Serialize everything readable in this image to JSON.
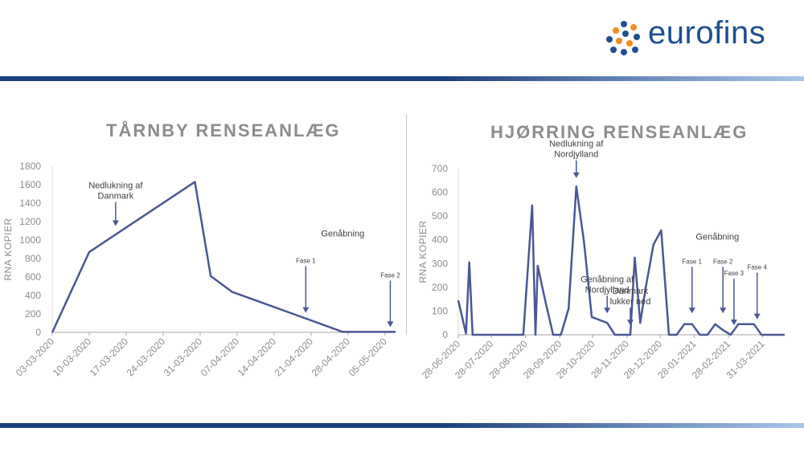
{
  "logo": {
    "text": "eurofins"
  },
  "colors": {
    "line": "#4a5794",
    "axis_text": "#8c8c8c",
    "brand": "#1d4f91",
    "band": "#1b3f7f"
  },
  "chart_data": [
    {
      "type": "line",
      "title": "TÅRNBY RENSEANLÆG",
      "ylabel": "RNA KOPIER",
      "ylim": [
        0,
        1800
      ],
      "yticks": [
        0,
        200,
        400,
        600,
        800,
        1000,
        1200,
        1400,
        1600,
        1800
      ],
      "xlim": [
        "2020-03-03",
        "2020-05-07"
      ],
      "xticks": [
        "03-03-2020",
        "10-03-2020",
        "17-03-2020",
        "24-03-2020",
        "31-03-2020",
        "07-04-2020",
        "14-04-2020",
        "21-04-2020",
        "28-04-2020",
        "05-05-2020"
      ],
      "x": [
        "2020-03-03",
        "2020-03-10",
        "2020-03-30",
        "2020-04-02",
        "2020-04-06",
        "2020-04-27",
        "2020-05-07"
      ],
      "y": [
        0,
        870,
        1630,
        610,
        440,
        5,
        5
      ],
      "annotations": [
        {
          "id": "nedlukning",
          "text": "Nedlukning af Danmark",
          "lines": [
            "Nedlukning af",
            "Danmark"
          ],
          "x": "2020-03-15",
          "y": 1100
        },
        {
          "id": "genabning",
          "text": "Genåbning",
          "lines": [
            "Genåbning"
          ],
          "x": "2020-04-27",
          "y": 1040
        },
        {
          "id": "fase1",
          "text": "Fase 1",
          "lines": [
            "Fase 1"
          ],
          "x": "2020-04-20",
          "y": 160
        },
        {
          "id": "fase2",
          "text": "Fase 2",
          "lines": [
            "Fase 2"
          ],
          "x": "2020-05-06",
          "y": 5
        }
      ]
    },
    {
      "type": "line",
      "title": "HJØRRING RENSEANLÆG",
      "ylabel": "RNA KOPIER",
      "ylim": [
        0,
        700
      ],
      "yticks": [
        0,
        100,
        200,
        300,
        400,
        500,
        600,
        700
      ],
      "xlim": [
        "2020-06-28",
        "2021-04-20"
      ],
      "xticks": [
        "28-06-2020",
        "28-07-2020",
        "28-08-2020",
        "28-09-2020",
        "28-10-2020",
        "28-11-2020",
        "28-12-2020",
        "28-01-2021",
        "28-02-2021",
        "31-03-2021"
      ],
      "x": [
        "2020-06-28",
        "2020-07-05",
        "2020-07-08",
        "2020-07-11",
        "2020-08-26",
        "2020-09-03",
        "2020-09-06",
        "2020-09-08",
        "2020-09-15",
        "2020-09-22",
        "2020-09-29",
        "2020-10-06",
        "2020-10-13",
        "2020-10-20",
        "2020-10-27",
        "2020-11-10",
        "2020-11-17",
        "2020-12-01",
        "2020-12-05",
        "2020-12-10",
        "2020-12-15",
        "2020-12-22",
        "2020-12-29",
        "2021-01-05",
        "2021-01-12",
        "2021-01-19",
        "2021-01-26",
        "2021-02-02",
        "2021-02-09",
        "2021-02-16",
        "2021-02-23",
        "2021-03-02",
        "2021-03-09",
        "2021-03-16",
        "2021-03-23",
        "2021-03-30",
        "2021-04-06",
        "2021-04-20"
      ],
      "y": [
        145,
        5,
        305,
        0,
        0,
        545,
        0,
        290,
        140,
        0,
        0,
        110,
        625,
        390,
        75,
        50,
        0,
        0,
        325,
        50,
        200,
        380,
        440,
        0,
        0,
        45,
        45,
        0,
        0,
        45,
        20,
        0,
        45,
        45,
        45,
        0,
        0,
        0
      ],
      "annotations": [
        {
          "id": "nedlukning",
          "text": "Nedlukning af Nordjylland",
          "lines": [
            "Nedlukning af",
            "Nordjylland"
          ],
          "x": "2020-10-13",
          "y": 640
        },
        {
          "id": "genabning-nord",
          "text": "Genåbning af Nordjylland",
          "lines": [
            "Genåbning af",
            "Nordjylland"
          ],
          "x": "2020-11-10",
          "y": 70
        },
        {
          "id": "danmark-lukker",
          "text": "Danmark lukker ned",
          "lines": [
            "Danmark",
            "lukker ned"
          ],
          "x": "2020-12-01",
          "y": 20
        },
        {
          "id": "genabning",
          "text": "Genåbning",
          "lines": [
            "Genåbning"
          ],
          "x": "2021-02-18",
          "y": 400
        },
        {
          "id": "fase1",
          "text": "Fase 1",
          "lines": [
            "Fase 1"
          ],
          "x": "2021-01-26",
          "y": 70
        },
        {
          "id": "fase2",
          "text": "Fase 2",
          "lines": [
            "Fase 2"
          ],
          "x": "2021-02-23",
          "y": 70
        },
        {
          "id": "fase3",
          "text": "Fase 3",
          "lines": [
            "Fase 3"
          ],
          "x": "2021-03-05",
          "y": 20
        },
        {
          "id": "fase4",
          "text": "Fase 4",
          "lines": [
            "Fase 4"
          ],
          "x": "2021-03-26",
          "y": 45
        }
      ]
    }
  ]
}
